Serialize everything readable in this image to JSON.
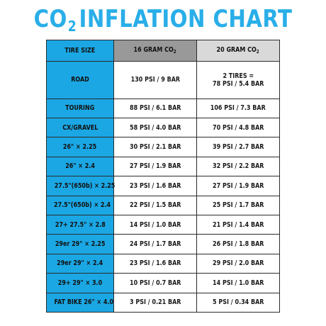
{
  "title": {
    "main": "CO",
    "sub": "2",
    "rest": "INFLATION CHART"
  },
  "colors": {
    "title": "#29aee8",
    "tire_column": "#1ba7e4",
    "header_16": "#999999",
    "header_20": "#d9d9d9"
  },
  "headers": {
    "tire": "TIRE SIZE",
    "g16_prefix": "16 GRAM CO",
    "g16_sub": "2",
    "g20_prefix": "20 GRAM CO",
    "g20_sub": "2"
  },
  "rows": [
    {
      "tire": "ROAD",
      "g16": "130 PSI / 9 BAR",
      "g20_line1": "2 TIRES =",
      "g20_line2": "78 PSI / 5.4 BAR"
    },
    {
      "tire": "TOURING",
      "g16": "88 PSI / 6.1 BAR",
      "g20_line1": "106 PSI / 7.3 BAR",
      "g20_line2": ""
    },
    {
      "tire": "CX/GRAVEL",
      "g16": "58 PSI / 4.0 BAR",
      "g20_line1": "70 PSI / 4.8 BAR",
      "g20_line2": ""
    },
    {
      "tire": "26\" × 2.25",
      "g16": "30 PSI / 2.1 BAR",
      "g20_line1": "39 PSI / 2.7 BAR",
      "g20_line2": ""
    },
    {
      "tire": "26\" × 2.4",
      "g16": "27 PSI / 1.9 BAR",
      "g20_line1": "32 PSI / 2.2 BAR",
      "g20_line2": ""
    },
    {
      "tire": "27.5\"(650b) × 2.25",
      "g16": "23 PSI / 1.6 BAR",
      "g20_line1": "27 PSI / 1.9 BAR",
      "g20_line2": ""
    },
    {
      "tire": "27.5\"(650b) × 2.4",
      "g16": "22 PSI / 1.5 BAR",
      "g20_line1": "25 PSI / 1.7 BAR",
      "g20_line2": ""
    },
    {
      "tire": "27+ 27.5\" × 2.8",
      "g16": "14 PSI / 1.0 BAR",
      "g20_line1": "21 PSI / 1.4 BAR",
      "g20_line2": ""
    },
    {
      "tire": "29er 29\" × 2.25",
      "g16": "24 PSI / 1.7 BAR",
      "g20_line1": "26 PSI / 1.8 BAR",
      "g20_line2": ""
    },
    {
      "tire": "29er 29\" × 2.4",
      "g16": "23 PSI / 1.6 BAR",
      "g20_line1": "29 PSI / 2.0 BAR",
      "g20_line2": ""
    },
    {
      "tire": "29+ 29\" × 3.0",
      "g16": "10 PSI / 0.7 BAR",
      "g20_line1": "14 PSI / 1.0 BAR",
      "g20_line2": ""
    },
    {
      "tire": "FAT BIKE 26\" × 4.0",
      "g16": "3 PSI / 0.21 BAR",
      "g20_line1": "5 PSI / 0.34 BAR",
      "g20_line2": ""
    }
  ]
}
